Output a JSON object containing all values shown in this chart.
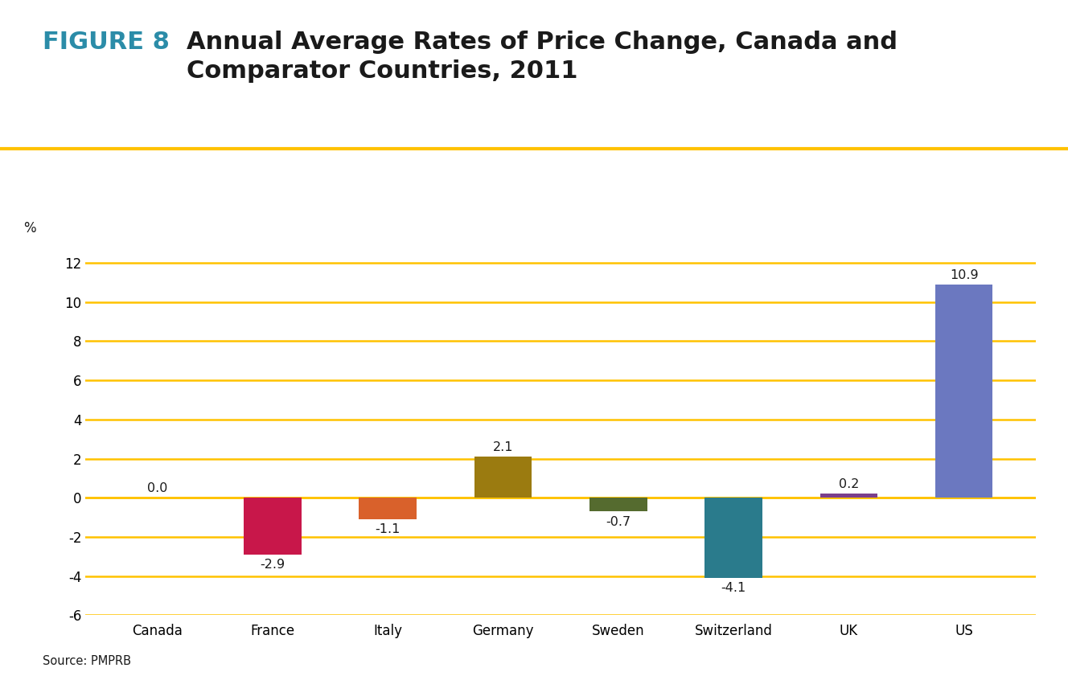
{
  "title_figure": "FIGURE 8",
  "title_text": "Annual Average Rates of Price Change, Canada and\nComparator Countries, 2011",
  "title_color_figure": "#2B8CA8",
  "title_color_text": "#1a1a1a",
  "categories": [
    "Canada",
    "France",
    "Italy",
    "Germany",
    "Sweden",
    "Switzerland",
    "UK",
    "US"
  ],
  "values": [
    0.0,
    -2.9,
    -1.1,
    2.1,
    -0.7,
    -4.1,
    0.2,
    10.9
  ],
  "bar_colors": [
    "#DDDDDD",
    "#C8174A",
    "#D9612B",
    "#9B7B10",
    "#556B2F",
    "#2A7B8C",
    "#7B3F8C",
    "#6B78C0"
  ],
  "ylabel": "%",
  "ylim": [
    -6,
    13
  ],
  "yticks": [
    -6,
    -4,
    -2,
    0,
    2,
    4,
    6,
    8,
    10,
    12
  ],
  "grid_color": "#FFC200",
  "source_text": "Source: PMPRB",
  "title_separator_color": "#FFC200",
  "background_color": "#FFFFFF"
}
